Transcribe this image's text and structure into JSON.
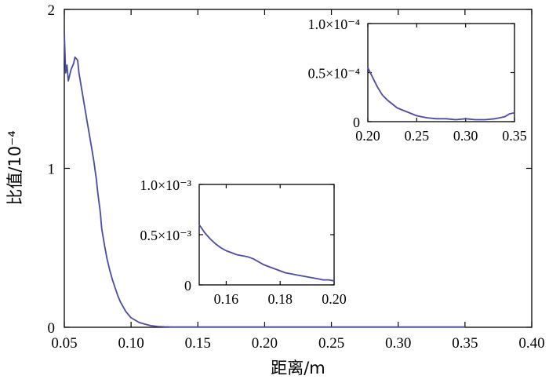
{
  "chart_data": [
    {
      "type": "line",
      "xlabel": "距离/m",
      "ylabel": "比值/10⁻⁴",
      "xlim": [
        0.05,
        0.4
      ],
      "ylim": [
        0,
        2
      ],
      "x_ticks": [
        "0.05",
        "0.10",
        "0.15",
        "0.20",
        "0.25",
        "0.30",
        "0.35",
        "0.40"
      ],
      "y_ticks": [
        "0",
        "1",
        "2"
      ],
      "line_color": "#4a4aa8",
      "series": [
        {
          "x": [
            0.05,
            0.051,
            0.052,
            0.053,
            0.055,
            0.057,
            0.058,
            0.06,
            0.061,
            0.063,
            0.065,
            0.067,
            0.069,
            0.071,
            0.072,
            0.074,
            0.075,
            0.077,
            0.078,
            0.08,
            0.082,
            0.084,
            0.086,
            0.088,
            0.09,
            0.092,
            0.094,
            0.096,
            0.098,
            0.1,
            0.103,
            0.106,
            0.11,
            0.115,
            0.12,
            0.125,
            0.13,
            0.14,
            0.15,
            0.2,
            0.25,
            0.3,
            0.35
          ],
          "y": [
            1.85,
            1.6,
            1.65,
            1.55,
            1.62,
            1.66,
            1.7,
            1.68,
            1.6,
            1.5,
            1.4,
            1.3,
            1.2,
            1.1,
            1.05,
            0.93,
            0.85,
            0.72,
            0.62,
            0.52,
            0.43,
            0.36,
            0.3,
            0.25,
            0.2,
            0.16,
            0.13,
            0.1,
            0.08,
            0.06,
            0.045,
            0.03,
            0.02,
            0.01,
            0.005,
            0.003,
            0.002,
            0.002,
            0.002,
            0.002,
            0.002,
            0.002,
            0.002
          ]
        }
      ]
    },
    {
      "type": "line",
      "inset": "lower",
      "xlim": [
        0.15,
        0.2
      ],
      "ylim": [
        0,
        0.001
      ],
      "x_ticks": [
        "0.16",
        "0.18",
        "0.20"
      ],
      "y_ticks": [
        "0",
        "0.5×10⁻³",
        "1.0×10⁻³"
      ],
      "series": [
        {
          "x": [
            0.15,
            0.152,
            0.154,
            0.156,
            0.158,
            0.16,
            0.162,
            0.164,
            0.166,
            0.168,
            0.17,
            0.172,
            0.174,
            0.176,
            0.178,
            0.18,
            0.182,
            0.184,
            0.186,
            0.188,
            0.19,
            0.192,
            0.194,
            0.196,
            0.198,
            0.2
          ],
          "y": [
            0.0006,
            0.00052,
            0.00046,
            0.00041,
            0.00037,
            0.00034,
            0.00032,
            0.0003,
            0.00029,
            0.00028,
            0.00026,
            0.00023,
            0.0002,
            0.00018,
            0.00016,
            0.00014,
            0.00012,
            0.00011,
            0.0001,
            9e-05,
            8e-05,
            7e-05,
            6e-05,
            5e-05,
            5e-05,
            4e-05
          ]
        }
      ]
    },
    {
      "type": "line",
      "inset": "upper",
      "xlim": [
        0.2,
        0.35
      ],
      "ylim": [
        0,
        0.0001
      ],
      "x_ticks": [
        "0.20",
        "0.25",
        "0.30",
        "0.35"
      ],
      "y_ticks": [
        "0",
        "0.5×10⁻⁴",
        "1.0×10⁻⁴"
      ],
      "series": [
        {
          "x": [
            0.2,
            0.205,
            0.21,
            0.215,
            0.22,
            0.225,
            0.23,
            0.235,
            0.24,
            0.245,
            0.25,
            0.255,
            0.26,
            0.27,
            0.28,
            0.29,
            0.3,
            0.31,
            0.32,
            0.33,
            0.34,
            0.345,
            0.35
          ],
          "y": [
            5.5e-05,
            4.5e-05,
            3.5e-05,
            2.7e-05,
            2.2e-05,
            1.8e-05,
            1.4e-05,
            1.2e-05,
            1e-05,
            8e-06,
            6e-06,
            5e-06,
            4e-06,
            3e-06,
            3e-06,
            2e-06,
            3e-06,
            2e-06,
            2e-06,
            3e-06,
            5e-06,
            8e-06,
            9e-06
          ]
        }
      ]
    }
  ]
}
